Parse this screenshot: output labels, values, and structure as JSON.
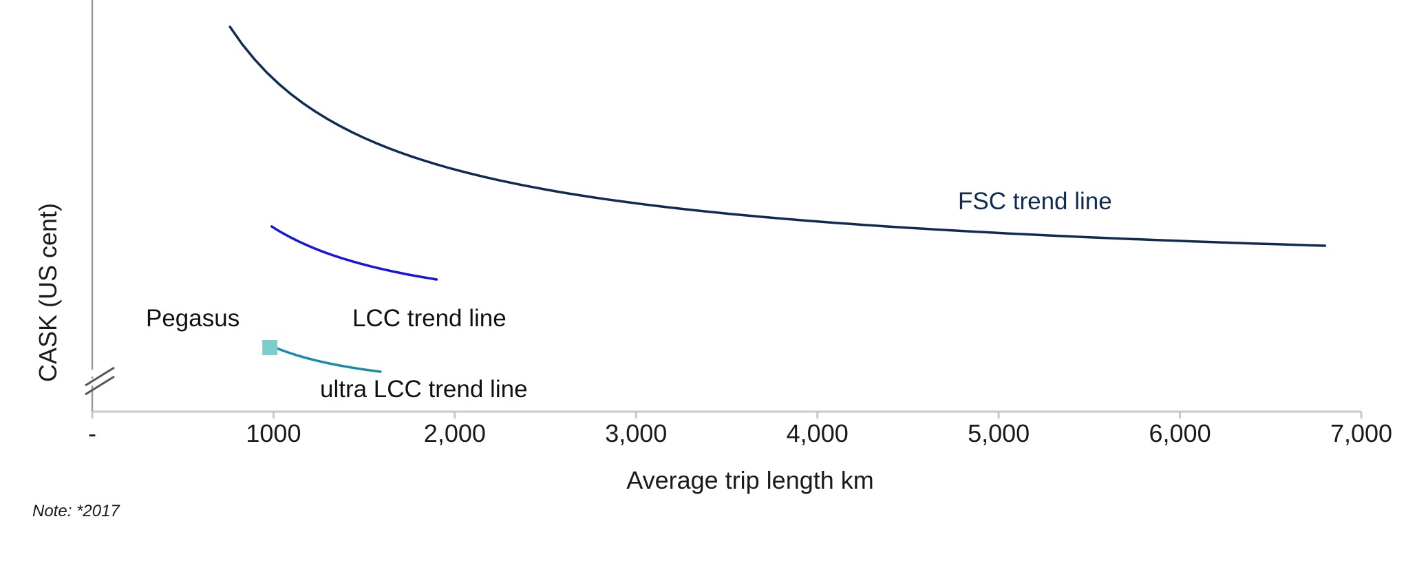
{
  "chart_data": {
    "type": "line",
    "xlabel": "Average trip length km",
    "ylabel": "CASK (US cent)",
    "xlim": [
      0,
      7000
    ],
    "x_ticks": [
      0,
      1000,
      2000,
      3000,
      4000,
      5000,
      6000,
      7000
    ],
    "x_tick_labels": [
      "-",
      "1000",
      "2,000",
      "3,000",
      "4,000",
      "5,000",
      "6,000",
      "7,000"
    ],
    "y_axis_break": true,
    "grid": false,
    "series": [
      {
        "name": "FSC trend line",
        "color": "#0f2b52",
        "x": [
          760,
          1000,
          1500,
          2000,
          2500,
          3000,
          3500,
          4000,
          4500,
          5000,
          5500,
          6000,
          6500,
          6800
        ]
      },
      {
        "name": "LCC trend line",
        "color": "#1414e6",
        "x": [
          990,
          1200,
          1400,
          1600,
          1900
        ]
      },
      {
        "name": "ultra LCC trend line",
        "color": "#1a8aa8",
        "x": [
          1000,
          1200,
          1400,
          1590
        ]
      }
    ],
    "points": [
      {
        "name": "Pegasus",
        "x": 980,
        "color": "#7ecdcd",
        "marker": "square"
      }
    ],
    "note": "Note: *2017"
  }
}
